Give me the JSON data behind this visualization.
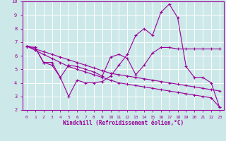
{
  "xlabel": "Windchill (Refroidissement éolien,°C)",
  "bg_color": "#cce8e8",
  "grid_color": "#ffffff",
  "line_color": "#990099",
  "xlim": [
    -0.5,
    23.5
  ],
  "ylim": [
    2,
    10
  ],
  "xticks": [
    0,
    1,
    2,
    3,
    4,
    5,
    6,
    7,
    8,
    9,
    10,
    11,
    12,
    13,
    14,
    15,
    16,
    17,
    18,
    19,
    20,
    21,
    22,
    23
  ],
  "yticks": [
    2,
    3,
    4,
    5,
    6,
    7,
    8,
    9,
    10
  ],
  "line1_x": [
    0,
    1,
    2,
    3,
    4,
    5,
    6,
    7,
    8,
    9,
    10,
    11,
    12,
    13,
    14,
    15,
    16,
    17,
    18,
    19,
    20,
    21,
    22,
    23
  ],
  "line1_y": [
    6.7,
    6.6,
    5.5,
    5.5,
    4.4,
    5.3,
    5.2,
    5.0,
    4.8,
    4.5,
    5.9,
    6.1,
    5.8,
    4.6,
    5.3,
    6.2,
    6.6,
    6.6,
    6.5,
    6.5,
    6.5,
    6.5,
    6.5,
    6.5
  ],
  "line2_x": [
    0,
    1,
    2,
    3,
    4,
    5,
    6,
    7,
    8,
    9,
    10,
    11,
    12,
    13,
    14,
    15,
    16,
    17,
    18,
    19,
    20,
    21,
    22,
    23
  ],
  "line2_y": [
    6.7,
    6.6,
    5.5,
    5.3,
    4.4,
    3.0,
    4.2,
    4.0,
    4.0,
    4.1,
    4.5,
    5.3,
    6.1,
    7.5,
    8.0,
    7.5,
    9.2,
    9.8,
    8.8,
    5.2,
    4.4,
    4.4,
    4.0,
    2.2
  ],
  "line3_x": [
    0,
    1,
    2,
    3,
    4,
    5,
    6,
    7,
    8,
    9,
    10,
    11,
    12,
    13,
    14,
    15,
    16,
    17,
    18,
    19,
    20,
    21,
    22,
    23
  ],
  "line3_y": [
    6.7,
    6.5,
    6.3,
    6.1,
    5.9,
    5.7,
    5.5,
    5.3,
    5.1,
    4.9,
    4.7,
    4.6,
    4.5,
    4.4,
    4.3,
    4.2,
    4.1,
    4.0,
    3.9,
    3.8,
    3.7,
    3.6,
    3.5,
    3.4
  ],
  "line4_x": [
    0,
    1,
    2,
    3,
    4,
    5,
    6,
    7,
    8,
    9,
    10,
    11,
    12,
    13,
    14,
    15,
    16,
    17,
    18,
    19,
    20,
    21,
    22,
    23
  ],
  "line4_y": [
    6.7,
    6.4,
    6.1,
    5.8,
    5.5,
    5.2,
    5.0,
    4.8,
    4.6,
    4.4,
    4.2,
    4.0,
    3.9,
    3.8,
    3.7,
    3.6,
    3.5,
    3.4,
    3.3,
    3.2,
    3.1,
    3.0,
    2.9,
    2.2
  ]
}
